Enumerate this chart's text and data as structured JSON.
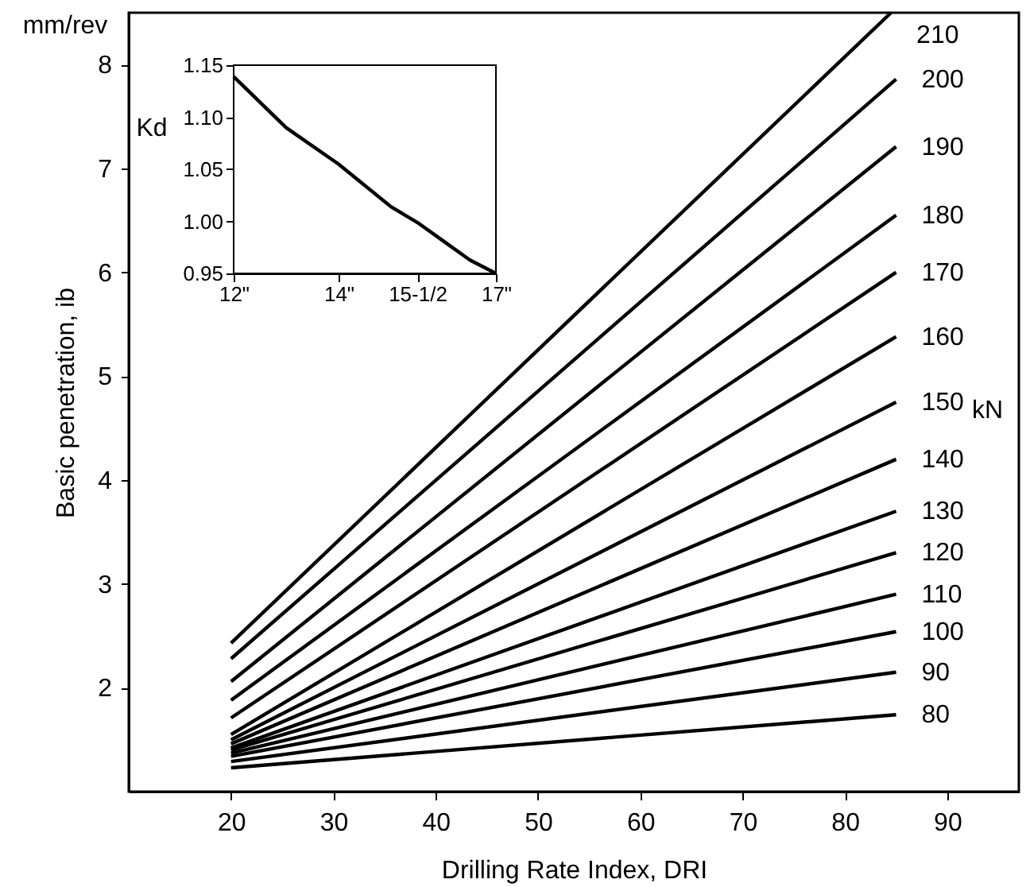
{
  "chart_data": [
    {
      "type": "line",
      "xlabel": "Drilling Rate Index, DRI",
      "ylabel": "Basic penetration, ib",
      "xlim": [
        10,
        97
      ],
      "ylim": [
        1,
        8.5
      ],
      "xticks": [
        20,
        30,
        40,
        50,
        60,
        70,
        80,
        90
      ],
      "yticks": [
        2,
        3,
        4,
        5,
        6,
        7,
        8
      ],
      "grid": false,
      "marker": "none",
      "annotations": [
        "mm/rev",
        "kN"
      ],
      "series": [
        {
          "name": "210",
          "color": "#000000",
          "x": [
            20,
            84.5
          ],
          "values": [
            2.43,
            8.5
          ]
        },
        {
          "name": "200",
          "color": "#000000",
          "x": [
            20,
            85
          ],
          "values": [
            2.28,
            7.86
          ]
        },
        {
          "name": "190",
          "color": "#000000",
          "x": [
            20,
            85
          ],
          "values": [
            2.06,
            7.21
          ]
        },
        {
          "name": "180",
          "color": "#000000",
          "x": [
            20,
            85
          ],
          "values": [
            1.88,
            6.55
          ]
        },
        {
          "name": "170",
          "color": "#000000",
          "x": [
            20,
            85
          ],
          "values": [
            1.71,
            6.0
          ]
        },
        {
          "name": "160",
          "color": "#000000",
          "x": [
            20,
            85
          ],
          "values": [
            1.55,
            5.38
          ]
        },
        {
          "name": "150",
          "color": "#000000",
          "x": [
            20,
            85
          ],
          "values": [
            1.5,
            4.75
          ]
        },
        {
          "name": "140",
          "color": "#000000",
          "x": [
            20,
            85
          ],
          "values": [
            1.46,
            4.2
          ]
        },
        {
          "name": "130",
          "color": "#000000",
          "x": [
            20,
            85
          ],
          "values": [
            1.42,
            3.7
          ]
        },
        {
          "name": "120",
          "color": "#000000",
          "x": [
            20,
            85
          ],
          "values": [
            1.4,
            3.3
          ]
        },
        {
          "name": "110",
          "color": "#000000",
          "x": [
            20,
            85
          ],
          "values": [
            1.37,
            2.9
          ]
        },
        {
          "name": "100",
          "color": "#000000",
          "x": [
            20,
            85
          ],
          "values": [
            1.34,
            2.54
          ]
        },
        {
          "name": "90",
          "color": "#000000",
          "x": [
            20,
            85
          ],
          "values": [
            1.29,
            2.15
          ]
        },
        {
          "name": "80",
          "color": "#000000",
          "x": [
            20,
            85
          ],
          "values": [
            1.23,
            1.74
          ]
        }
      ]
    },
    {
      "type": "line",
      "ylabel": "Kd",
      "xlim": [
        12,
        17
      ],
      "ylim": [
        0.95,
        1.15
      ],
      "xticks": [
        {
          "value": 12,
          "label": "12\""
        },
        {
          "value": 14,
          "label": "14\""
        },
        {
          "value": 15.5,
          "label": "15-1/2"
        },
        {
          "value": 17,
          "label": "17\""
        }
      ],
      "yticks": [
        {
          "value": 0.95,
          "label": "0.95"
        },
        {
          "value": 1.0,
          "label": "1.00"
        },
        {
          "value": 1.05,
          "label": "1.05"
        },
        {
          "value": 1.1,
          "label": "1.10"
        },
        {
          "value": 1.15,
          "label": "1.15"
        }
      ],
      "marker": "none",
      "series": [
        {
          "color": "#000000",
          "x": [
            12,
            13,
            14,
            15,
            15.5,
            16,
            16.5,
            17
          ],
          "values": [
            1.139,
            1.09,
            1.055,
            1.014,
            0.999,
            0.981,
            0.963,
            0.95
          ]
        }
      ]
    }
  ]
}
